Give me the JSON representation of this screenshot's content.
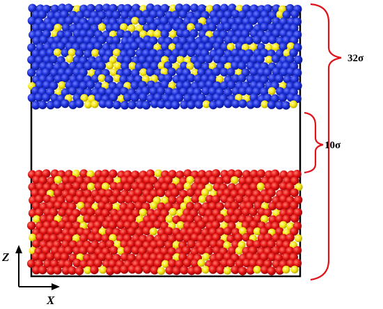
{
  "labels": {
    "total_height": "32σ",
    "gap_height": "10σ",
    "axis_z": "Z",
    "axis_x": "X"
  },
  "colors": {
    "top_slab": "#1a2fd6",
    "bottom_slab": "#e01010",
    "solute": "#f5e60f",
    "bracket": "#e0111a",
    "frame": "#000000"
  }
}
